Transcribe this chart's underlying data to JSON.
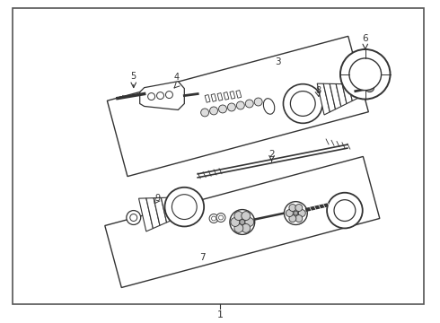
{
  "bg_color": "#ffffff",
  "border_color": "#555555",
  "line_color": "#333333",
  "fig_width": 4.9,
  "fig_height": 3.6,
  "dpi": 100
}
